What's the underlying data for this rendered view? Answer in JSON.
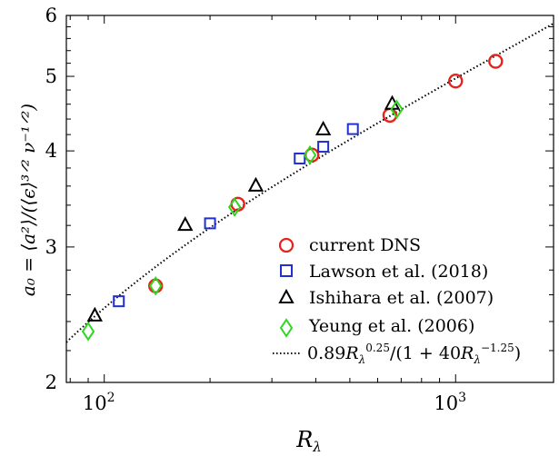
{
  "chart_data": {
    "type": "scatter",
    "xscale": "log",
    "yscale": "log",
    "xlim": [
      78,
      1900
    ],
    "ylim": [
      2,
      6
    ],
    "xticks": [
      {
        "value": 100,
        "label": "10",
        "sup": "2"
      },
      {
        "value": 1000,
        "label": "10",
        "sup": "3"
      }
    ],
    "yticks": [
      {
        "value": 2,
        "label": "2"
      },
      {
        "value": 3,
        "label": "3"
      },
      {
        "value": 4,
        "label": "4"
      },
      {
        "value": 5,
        "label": "5"
      },
      {
        "value": 6,
        "label": "6"
      }
    ],
    "xlabel_main": "R",
    "xlabel_sub": "λ",
    "ylabel": "a₀ = ⟨a²⟩/(⟨ϵ⟩³ᐟ² ν⁻¹ᐟ²)",
    "grid": false,
    "legend_position": "bottom-right",
    "series": [
      {
        "name": "current DNS",
        "marker": "circle",
        "color": "#e8221b",
        "x": [
          140,
          240,
          390,
          650,
          1000,
          1300
        ],
        "y": [
          2.67,
          3.41,
          3.95,
          4.45,
          4.93,
          5.23
        ]
      },
      {
        "name": "Lawson et al. (2018)",
        "marker": "square",
        "color": "#1f2fd0",
        "x": [
          110,
          200,
          360,
          420,
          510
        ],
        "y": [
          2.55,
          3.22,
          3.91,
          4.05,
          4.27
        ]
      },
      {
        "name": "Ishihara et al. (2007)",
        "marker": "triangle",
        "color": "#000000",
        "x": [
          94,
          170,
          270,
          420,
          660
        ],
        "y": [
          2.44,
          3.2,
          3.6,
          4.26,
          4.6
        ]
      },
      {
        "name": "Yeung et al. (2006)",
        "marker": "diamond",
        "color": "#2bd81f",
        "x": [
          90,
          140,
          235,
          385,
          680
        ],
        "y": [
          2.33,
          2.67,
          3.38,
          3.95,
          4.53
        ]
      }
    ],
    "fit_line": {
      "name": "0.89R_λ^{0.25}/(1+40R_λ^{-1.25})",
      "coefficient": 0.89,
      "exponent": 0.25,
      "denominator_coefficient": 40,
      "denominator_exponent": -1.25,
      "style": "dotted",
      "color": "#000000"
    }
  },
  "legend": {
    "entries": [
      {
        "label": "current DNS"
      },
      {
        "label": "Lawson et al. (2018)"
      },
      {
        "label": "Ishihara et al. (2007)"
      },
      {
        "label": "Yeung et al. (2006)"
      }
    ],
    "fit_label_parts": {
      "coef": "0.89",
      "R": "R",
      "sub": "λ",
      "exp1": "0.25",
      "denom_open": "/(1 + 40",
      "exp2": "−1.25",
      "close": ")"
    }
  }
}
